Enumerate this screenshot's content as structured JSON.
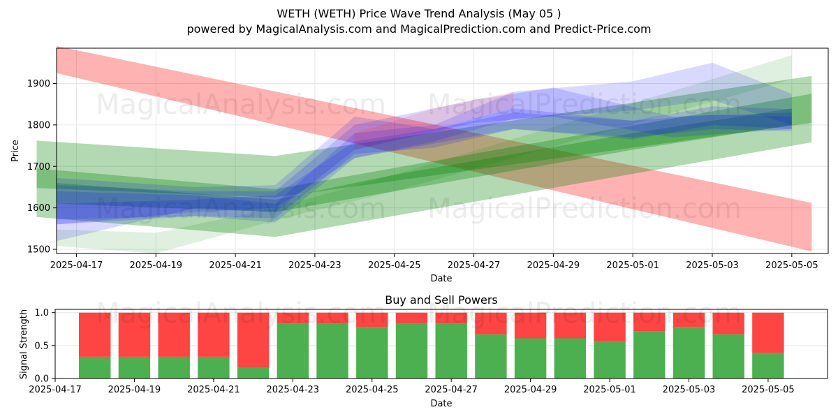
{
  "chart_title": "WETH (WETH) Price Wave Trend Analysis (May 05 )",
  "chart_subtitle": "powered by MagicalAnalysis.com and MagicalPrediction.com and Predict-Price.com",
  "watermarks": [
    "MagicalAnalysis.com",
    "MagicalPrediction.com"
  ],
  "colors": {
    "red_band": "#ff0000",
    "green_band": "#008000",
    "blue_band": "#0000ff",
    "buy": "#4caf50",
    "sell": "#ff4444",
    "grid": "#e6e6e6"
  },
  "chart_data": [
    {
      "type": "area",
      "title": "WETH (WETH) Price Wave Trend Analysis (May 05 )",
      "xlabel": "Date",
      "ylabel": "Price",
      "x_axis": "date",
      "xlim": [
        "2025-04-16T12:00",
        "2025-05-05T22:00"
      ],
      "ylim": [
        1490,
        1985
      ],
      "yticks": [
        1500,
        1600,
        1700,
        1800,
        1900
      ],
      "xticks": [
        "2025-04-17",
        "2025-04-19",
        "2025-04-21",
        "2025-04-23",
        "2025-04-25",
        "2025-04-27",
        "2025-04-29",
        "2025-05-01",
        "2025-05-03",
        "2025-05-05"
      ],
      "grid": true,
      "bands": [
        {
          "color": "red",
          "opacity": 0.3,
          "x": [
            "2025-04-16T12:00",
            "2025-05-05T12:00"
          ],
          "upper": [
            1990,
            1612
          ],
          "lower": [
            1925,
            1495
          ]
        },
        {
          "color": "green",
          "opacity": 0.3,
          "x": [
            "2025-04-16",
            "2025-04-22",
            "2025-05-05T12:00"
          ],
          "upper": [
            1762,
            1725,
            1918
          ],
          "lower": [
            1648,
            1625,
            1805
          ]
        },
        {
          "color": "green",
          "opacity": 0.3,
          "x": [
            "2025-04-16",
            "2025-04-22",
            "2025-05-05T12:00"
          ],
          "upper": [
            1695,
            1645,
            1875
          ],
          "lower": [
            1578,
            1530,
            1758
          ]
        },
        {
          "color": "green",
          "opacity": 0.3,
          "x": [
            "2025-04-16T12:00",
            "2025-04-22",
            "2025-04-25",
            "2025-05-01",
            "2025-05-05"
          ],
          "upper": [
            1660,
            1620,
            1680,
            1780,
            1840
          ],
          "lower": [
            1610,
            1590,
            1640,
            1740,
            1800
          ]
        },
        {
          "color": "green",
          "opacity": 0.12,
          "x": [
            "2025-04-16T12:00",
            "2025-04-19",
            "2025-04-22",
            "2025-04-25",
            "2025-05-05"
          ],
          "upper": [
            1548,
            1540,
            1600,
            1680,
            1968
          ],
          "lower": [
            1508,
            1490,
            1570,
            1640,
            1910
          ]
        },
        {
          "color": "blue",
          "opacity": 0.15,
          "x": [
            "2025-04-16T12:00",
            "2025-04-20",
            "2025-04-22",
            "2025-04-24",
            "2025-04-26",
            "2025-04-28",
            "2025-05-01",
            "2025-05-03",
            "2025-05-05"
          ],
          "upper": [
            1672,
            1650,
            1655,
            1820,
            1790,
            1840,
            1810,
            1845,
            1838
          ],
          "lower": [
            1572,
            1580,
            1575,
            1730,
            1745,
            1790,
            1765,
            1800,
            1790
          ]
        },
        {
          "color": "blue",
          "opacity": 0.15,
          "x": [
            "2025-04-16T12:00",
            "2025-04-20",
            "2025-04-22",
            "2025-04-24",
            "2025-04-26",
            "2025-04-28",
            "2025-05-01",
            "2025-05-03",
            "2025-05-05"
          ],
          "upper": [
            1640,
            1630,
            1610,
            1780,
            1800,
            1880,
            1905,
            1950,
            1875
          ],
          "lower": [
            1560,
            1580,
            1565,
            1720,
            1760,
            1815,
            1835,
            1860,
            1800
          ]
        },
        {
          "color": "blue",
          "opacity": 0.15,
          "x": [
            "2025-04-16T12:00",
            "2025-04-20",
            "2025-04-22",
            "2025-04-24",
            "2025-04-27",
            "2025-04-29",
            "2025-05-02",
            "2025-05-05"
          ],
          "upper": [
            1655,
            1640,
            1640,
            1800,
            1860,
            1890,
            1820,
            1830
          ],
          "lower": [
            1520,
            1600,
            1590,
            1740,
            1805,
            1820,
            1770,
            1790
          ]
        },
        {
          "color": "blue",
          "opacity": 0.15,
          "x": [
            "2025-04-16T12:00",
            "2025-04-20",
            "2025-04-22",
            "2025-04-24",
            "2025-04-26",
            "2025-04-28",
            "2025-05-01",
            "2025-05-03",
            "2025-05-05"
          ],
          "upper": [
            1610,
            1620,
            1630,
            1760,
            1790,
            1830,
            1810,
            1825,
            1820
          ],
          "lower": [
            1560,
            1590,
            1600,
            1720,
            1755,
            1790,
            1770,
            1790,
            1785
          ]
        },
        {
          "color": "red",
          "opacity": 0.1,
          "x": [
            "2025-04-24",
            "2025-04-26",
            "2025-04-28"
          ],
          "upper": [
            1780,
            1840,
            1880
          ],
          "lower": [
            1740,
            1790,
            1840
          ]
        }
      ]
    },
    {
      "type": "bar",
      "title": "Buy and Sell Powers",
      "xlabel": "Date",
      "ylabel": "Signal Strength",
      "ylim": [
        0,
        1.05
      ],
      "yticks": [
        0.0,
        0.5,
        1.0
      ],
      "grid": true,
      "categories": [
        "2025-04-18",
        "2025-04-19",
        "2025-04-20",
        "2025-04-21",
        "2025-04-22",
        "2025-04-23",
        "2025-04-24",
        "2025-04-25",
        "2025-04-26",
        "2025-04-27",
        "2025-04-28",
        "2025-04-29",
        "2025-04-30",
        "2025-05-01",
        "2025-05-02",
        "2025-05-03",
        "2025-05-04",
        "2025-05-05"
      ],
      "series": [
        {
          "name": "buy",
          "values": [
            0.33,
            0.33,
            0.33,
            0.33,
            0.17,
            0.83,
            0.83,
            0.78,
            0.83,
            0.83,
            0.67,
            0.61,
            0.61,
            0.56,
            0.72,
            0.78,
            0.67,
            0.39
          ]
        },
        {
          "name": "sell",
          "values": [
            0.67,
            0.67,
            0.67,
            0.67,
            0.83,
            0.17,
            0.17,
            0.22,
            0.17,
            0.17,
            0.33,
            0.39,
            0.39,
            0.44,
            0.28,
            0.22,
            0.33,
            0.61
          ]
        }
      ],
      "xlim": [
        "2025-04-17T00:00",
        "2025-05-06T12:00"
      ],
      "xticks": [
        "2025-04-17",
        "2025-04-19",
        "2025-04-21",
        "2025-04-23",
        "2025-04-25",
        "2025-04-27",
        "2025-04-29",
        "2025-05-01",
        "2025-05-03",
        "2025-05-05"
      ]
    }
  ]
}
